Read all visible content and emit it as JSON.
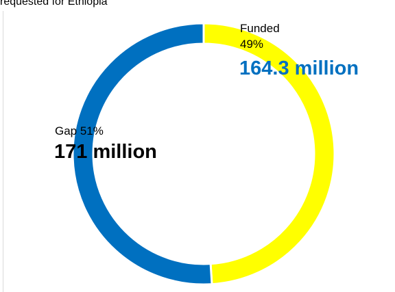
{
  "header_text": "requested for Ethiopia",
  "colors": {
    "funded": "#FFFF00",
    "gap": "#0070C0",
    "funded_amount": "#0070C0",
    "gap_amount": "#000000"
  },
  "chart_data": {
    "type": "pie",
    "donut": true,
    "slices": [
      {
        "label": "Funded",
        "percent_label": "49%",
        "value": 164.3,
        "amount_label": "164.3 million",
        "color": "#FFFF00"
      },
      {
        "label": "Gap",
        "percent_label": "51%",
        "value": 171,
        "amount_label": "171 million",
        "color": "#0070C0"
      }
    ],
    "gap_title": "Gap 51%"
  }
}
